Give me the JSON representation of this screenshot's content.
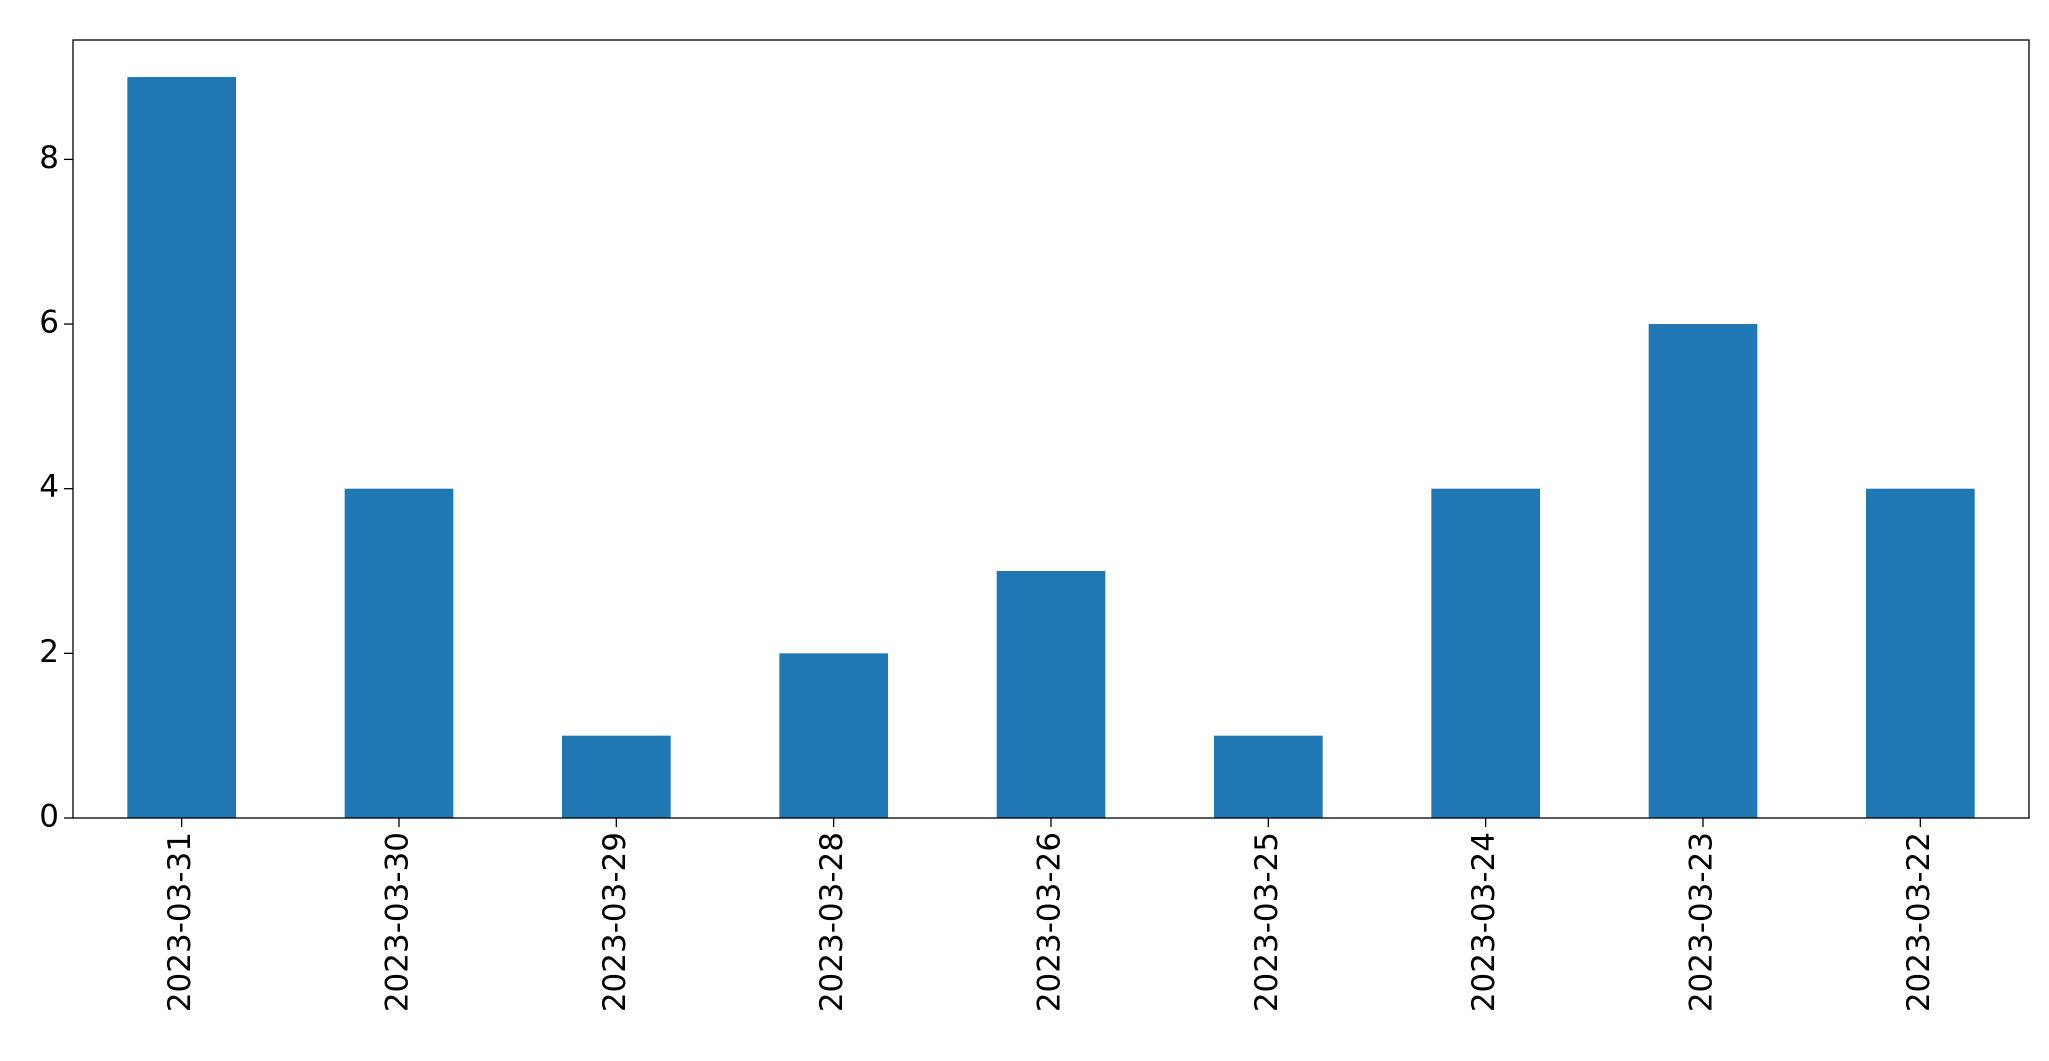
{
  "chart_data": {
    "type": "bar",
    "categories": [
      "2023-03-31",
      "2023-03-30",
      "2023-03-29",
      "2023-03-28",
      "2023-03-26",
      "2023-03-25",
      "2023-03-24",
      "2023-03-23",
      "2023-03-22"
    ],
    "values": [
      9,
      4,
      1,
      2,
      3,
      1,
      4,
      6,
      4
    ],
    "color": "#1f77b4",
    "ylim": [
      0,
      9.45
    ],
    "yticks": [
      0,
      2,
      4,
      6,
      8
    ],
    "grid": false
  }
}
